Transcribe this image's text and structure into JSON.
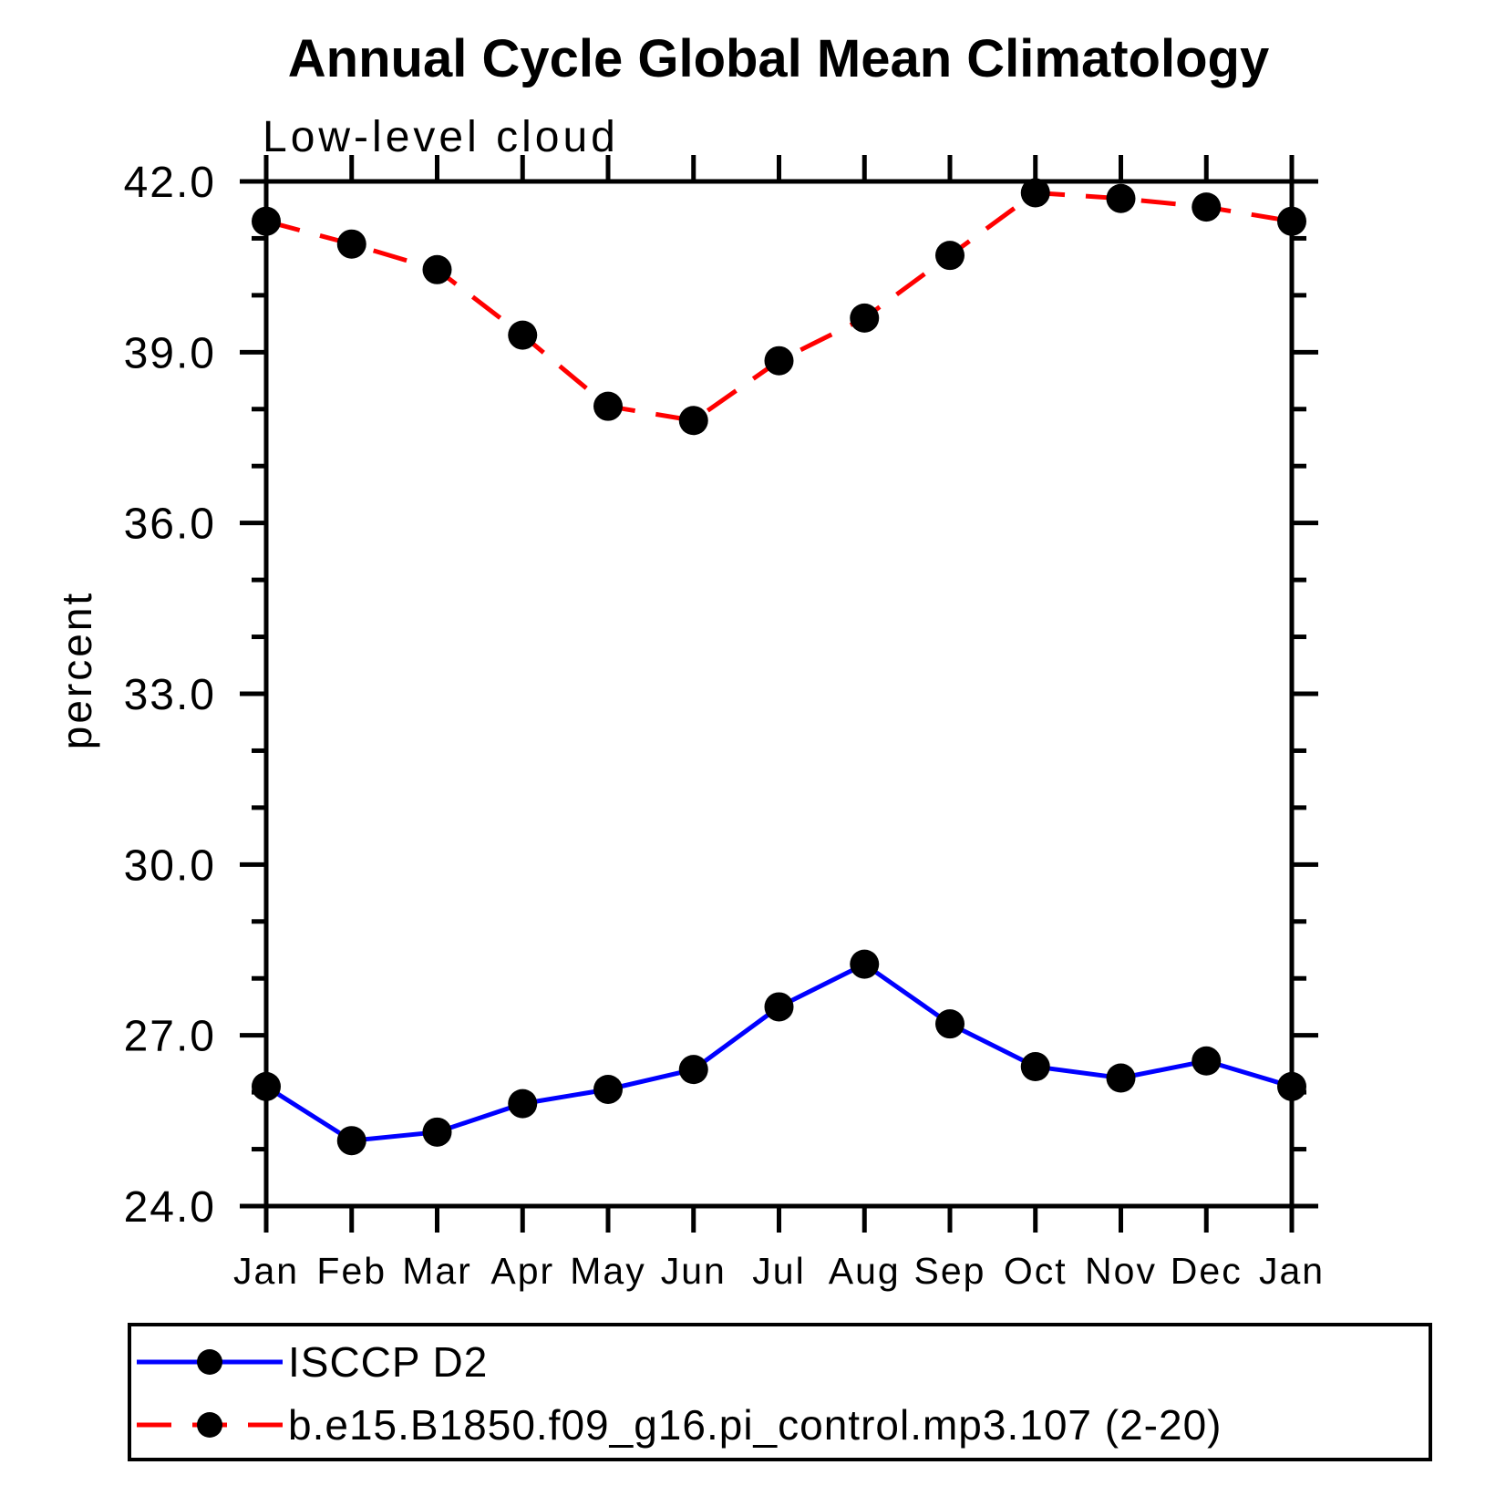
{
  "title": "Annual Cycle Global Mean Climatology",
  "subtitle": "Low-level cloud",
  "chart_data": {
    "type": "line",
    "title": "Annual Cycle Global Mean Climatology",
    "subtitle": "Low-level cloud",
    "xlabel": "",
    "ylabel": "percent",
    "categories": [
      "Jan",
      "Feb",
      "Mar",
      "Apr",
      "May",
      "Jun",
      "Jul",
      "Aug",
      "Sep",
      "Oct",
      "Nov",
      "Dec",
      "Jan"
    ],
    "series": [
      {
        "name": "ISCCP D2",
        "line_style": "solid",
        "line_color": "#0000ff",
        "marker": "filled-circle",
        "marker_color": "#000000",
        "values": [
          26.1,
          25.15,
          25.3,
          25.8,
          26.05,
          26.4,
          27.5,
          28.25,
          27.2,
          26.45,
          26.25,
          26.55,
          26.1
        ]
      },
      {
        "name": "b.e15.B1850.f09_g16.pi_control.mp3.107 (2-20)",
        "line_style": "dashed",
        "line_color": "#ff0000",
        "marker": "filled-circle",
        "marker_color": "#000000",
        "values": [
          41.3,
          40.9,
          40.45,
          39.3,
          38.05,
          37.8,
          38.85,
          39.6,
          40.7,
          41.8,
          41.7,
          41.55,
          41.3
        ]
      }
    ],
    "ylim": [
      24.0,
      42.0
    ],
    "ytick_major": [
      24.0,
      27.0,
      30.0,
      33.0,
      36.0,
      39.0,
      42.0
    ],
    "ytick_labels": [
      "24.0",
      "27.0",
      "30.0",
      "33.0",
      "36.0",
      "39.0",
      "42.0"
    ],
    "ytick_minor_step": 1.0,
    "grid": false,
    "tick_style": "outward-all-four-sides",
    "legend_position": "bottom-left-box",
    "axis_color": "#000000",
    "background_color": "#ffffff"
  }
}
